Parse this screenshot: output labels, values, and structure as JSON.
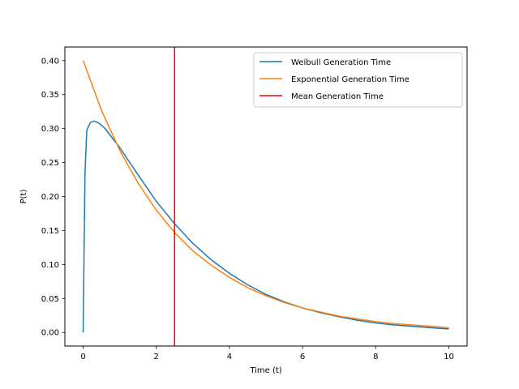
{
  "chart_data": {
    "type": "line",
    "title": "",
    "xlabel": "Time (t)",
    "ylabel": "P(t)",
    "xlim": [
      -0.5,
      10.5
    ],
    "ylim": [
      -0.02,
      0.42
    ],
    "grid": false,
    "legend_placement": "top-right",
    "x_ticks": [
      0,
      2,
      4,
      6,
      8,
      10
    ],
    "x_tick_labels": [
      "0",
      "2",
      "4",
      "6",
      "8",
      "10"
    ],
    "y_ticks": [
      0.0,
      0.05,
      0.1,
      0.15,
      0.2,
      0.25,
      0.3,
      0.35,
      0.4
    ],
    "y_tick_labels": [
      "0.00",
      "0.05",
      "0.10",
      "0.15",
      "0.20",
      "0.25",
      "0.30",
      "0.35",
      "0.40"
    ],
    "series": [
      {
        "name": "Weibull Generation Time",
        "color": "#1f77b4",
        "kind": "line",
        "x": [
          0,
          0.05,
          0.1,
          0.2,
          0.3,
          0.4,
          0.5,
          0.6,
          0.8,
          1.0,
          1.5,
          2.0,
          2.5,
          3.0,
          3.5,
          4.0,
          4.5,
          5.0,
          5.5,
          6.0,
          6.5,
          7.0,
          7.5,
          8.0,
          8.5,
          9.0,
          9.5,
          10.0
        ],
        "y": [
          0.0,
          0.235,
          0.298,
          0.309,
          0.311,
          0.309,
          0.305,
          0.3,
          0.286,
          0.272,
          0.232,
          0.193,
          0.16,
          0.131,
          0.107,
          0.087,
          0.07,
          0.056,
          0.045,
          0.036,
          0.029,
          0.023,
          0.018,
          0.014,
          0.011,
          0.009,
          0.007,
          0.005
        ]
      },
      {
        "name": "Exponential Generation Time",
        "color": "#ff7f0e",
        "kind": "line",
        "x": [
          0,
          0.5,
          1.0,
          1.5,
          2.0,
          2.5,
          3.0,
          3.5,
          4.0,
          4.5,
          5.0,
          5.5,
          6.0,
          6.5,
          7.0,
          7.5,
          8.0,
          8.5,
          9.0,
          9.5,
          10.0
        ],
        "y": [
          0.4,
          0.327,
          0.268,
          0.22,
          0.18,
          0.147,
          0.12,
          0.099,
          0.081,
          0.066,
          0.054,
          0.044,
          0.036,
          0.03,
          0.024,
          0.02,
          0.016,
          0.013,
          0.011,
          0.009,
          0.007
        ]
      },
      {
        "name": "Mean Generation Time",
        "color": "#ff0000",
        "kind": "vline",
        "x_value": 2.5
      }
    ]
  }
}
